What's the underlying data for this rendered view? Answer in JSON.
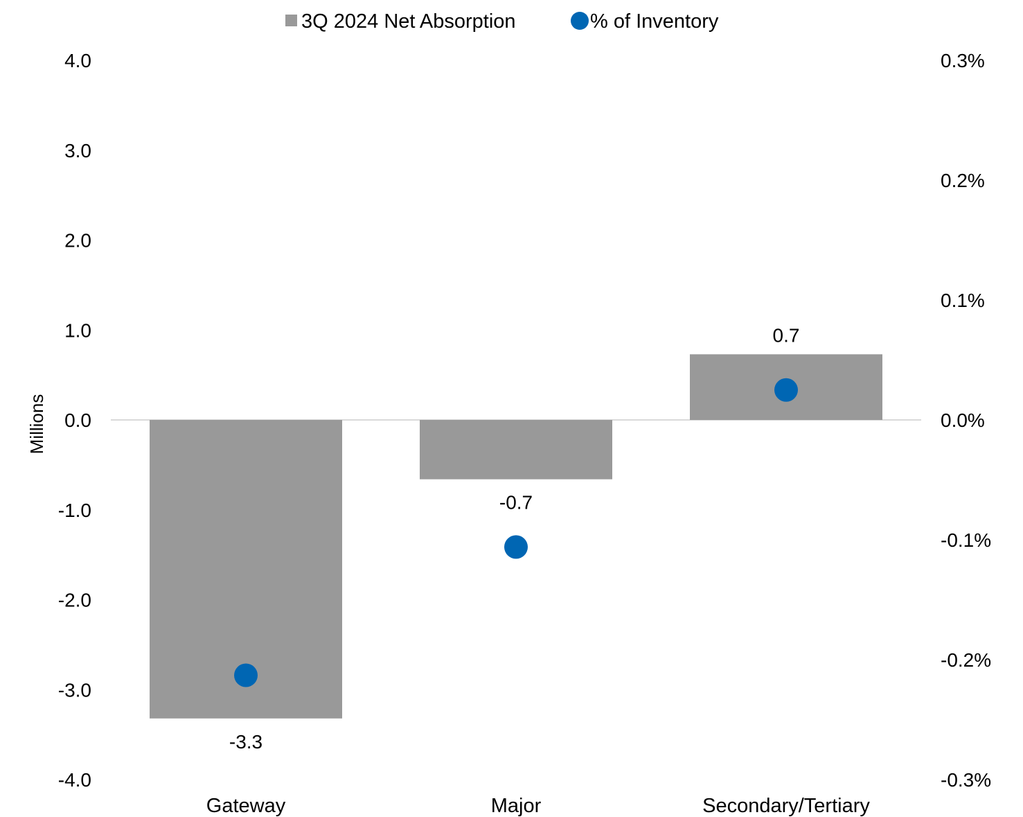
{
  "chart_data": {
    "type": "bar",
    "categories": [
      "Gateway",
      "Major",
      "Secondary/Tertiary"
    ],
    "series": [
      {
        "name": "3Q 2024 Net Absorption",
        "kind": "bar",
        "axis": "left",
        "color": "#999999",
        "values": [
          -3.32,
          -0.66,
          0.73
        ],
        "labels": [
          "-3.3",
          "-0.7",
          "0.7"
        ]
      },
      {
        "name": "% of Inventory",
        "kind": "scatter",
        "axis": "right",
        "color": "#0066B3",
        "values": [
          -0.213,
          -0.106,
          0.025
        ]
      }
    ],
    "ylabel": "Millions",
    "ylim": [
      -4.0,
      4.0
    ],
    "yticks": [
      "-4.0",
      "-3.0",
      "-2.0",
      "-1.0",
      "0.0",
      "1.0",
      "2.0",
      "3.0",
      "4.0"
    ],
    "y2lim": [
      -0.3,
      0.3
    ],
    "y2ticks": [
      "-0.3%",
      "-0.2%",
      "-0.1%",
      "0.0%",
      "0.1%",
      "0.2%",
      "0.3%"
    ],
    "legend_position": "top",
    "grid": false
  }
}
